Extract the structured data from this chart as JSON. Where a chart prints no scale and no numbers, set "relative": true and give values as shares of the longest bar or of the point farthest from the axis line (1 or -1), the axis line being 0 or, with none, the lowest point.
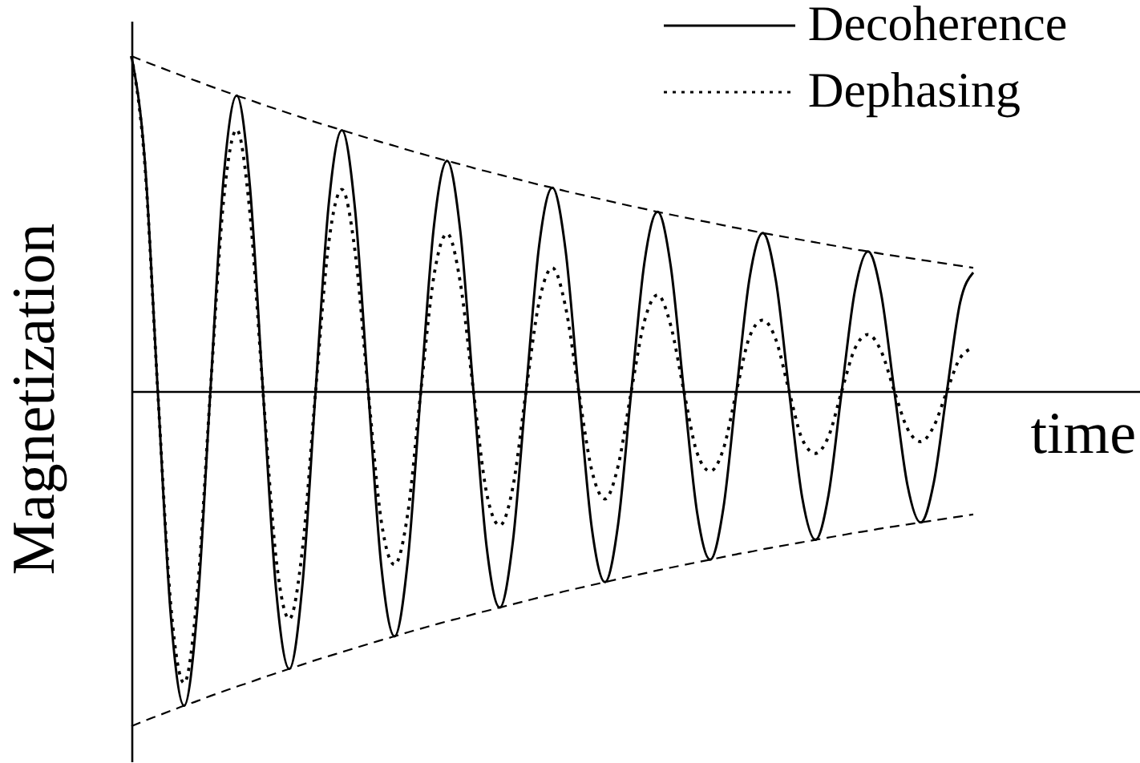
{
  "chart_data": {
    "type": "line",
    "xlabel": "time",
    "ylabel": "Magnetization",
    "relative": true,
    "legend": "top right",
    "categories": [
      null,
      null,
      null,
      null,
      null,
      null,
      null,
      null,
      null,
      null,
      null,
      null,
      null,
      null,
      null,
      null,
      null,
      null,
      null,
      null,
      null,
      null,
      null,
      null,
      null,
      null,
      null,
      null,
      null,
      null,
      null,
      null,
      null,
      null,
      null,
      null,
      null,
      null,
      null,
      null,
      null,
      null,
      null,
      null,
      null,
      null,
      null,
      null,
      null,
      null,
      null,
      null,
      null,
      null,
      null,
      null,
      null,
      null,
      null,
      null,
      null,
      null,
      null,
      null,
      null
    ],
    "series": [
      {
        "name": "Decoherence",
        "color": "#000000",
        "line_style": "solid",
        "values": [
          1,
          0.696,
          0,
          -0.675,
          -0.939,
          -0.654,
          0,
          0.634,
          0.882,
          0.614,
          0,
          -0.595,
          -0.829,
          -0.577,
          0,
          0.559,
          0.779,
          0.542,
          0,
          -0.525,
          -0.732,
          -0.509,
          0,
          0.494,
          0.687,
          0.478,
          0,
          -0.464,
          -0.646,
          -0.449,
          0,
          0.436,
          0.607,
          0.422,
          0,
          -0.409,
          -0.57,
          -0.397,
          0,
          0.384,
          0.535,
          0.373,
          0,
          -0.361,
          -0.503,
          -0.35,
          0,
          0.339,
          0.472,
          0.329,
          0,
          -0.319,
          -0.444,
          -0.309,
          0,
          0.299,
          0.417,
          0.29,
          0,
          -0.281,
          -0.392,
          -0.273,
          0,
          0.264,
          0.354
        ]
      },
      {
        "name": "Dephasing",
        "color": "#000000",
        "line_style": "dotted",
        "values": [
          1,
          0.685,
          0,
          -0.644,
          -0.871,
          -0.605,
          0,
          0.568,
          0.78,
          0.534,
          0,
          -0.501,
          -0.68,
          -0.471,
          0,
          0.443,
          0.602,
          0.416,
          0,
          -0.39,
          -0.518,
          -0.367,
          0,
          0.345,
          0.47,
          0.324,
          0,
          -0.304,
          -0.401,
          -0.286,
          0,
          0.268,
          0.368,
          0.252,
          0,
          -0.237,
          -0.322,
          -0.223,
          0,
          0.209,
          0.287,
          0.196,
          0,
          -0.184,
          -0.239,
          -0.173,
          0,
          0.163,
          0.212,
          0.153,
          0,
          -0.144,
          -0.186,
          -0.135,
          0,
          0.127,
          0.169,
          0.119,
          0,
          -0.112,
          -0.151,
          -0.105,
          0,
          0.099,
          0.129
        ]
      },
      {
        "color": "#000000",
        "line_style": "dashed",
        "values": [
          1,
          0.984,
          0.969,
          0.954,
          0.939,
          0.925,
          0.91,
          0.896,
          0.882,
          0.869,
          0.855,
          0.842,
          0.829,
          0.816,
          0.803,
          0.791,
          0.779,
          0.767,
          0.755,
          0.743,
          0.732,
          0.72,
          0.709,
          0.698,
          0.687,
          0.677,
          0.666,
          0.656,
          0.646,
          0.636,
          0.626,
          0.616,
          0.607,
          0.597,
          0.588,
          0.579,
          0.57,
          0.561,
          0.552,
          0.544,
          0.535,
          0.527,
          0.519,
          0.511,
          0.503,
          0.495,
          0.487,
          0.48,
          0.472,
          0.465,
          0.458,
          0.451,
          0.444,
          0.437,
          0.43,
          0.423,
          0.417,
          0.41,
          0.404,
          0.398,
          0.392,
          0.386,
          0.38,
          0.374,
          0.368
        ]
      },
      {
        "color": "#000000",
        "line_style": "dashed",
        "values": [
          -1,
          -0.984,
          -0.969,
          -0.954,
          -0.939,
          -0.925,
          -0.91,
          -0.896,
          -0.882,
          -0.869,
          -0.855,
          -0.842,
          -0.829,
          -0.816,
          -0.803,
          -0.791,
          -0.779,
          -0.767,
          -0.755,
          -0.743,
          -0.732,
          -0.72,
          -0.709,
          -0.698,
          -0.687,
          -0.677,
          -0.666,
          -0.656,
          -0.646,
          -0.636,
          -0.626,
          -0.616,
          -0.607,
          -0.597,
          -0.588,
          -0.579,
          -0.57,
          -0.561,
          -0.552,
          -0.544,
          -0.535,
          -0.527,
          -0.519,
          -0.511,
          -0.503,
          -0.495,
          -0.487,
          -0.48,
          -0.472,
          -0.465,
          -0.458,
          -0.451,
          -0.444,
          -0.437,
          -0.43,
          -0.423,
          -0.417,
          -0.41,
          -0.404,
          -0.398,
          -0.392,
          -0.386,
          -0.38,
          -0.374,
          -0.368
        ]
      }
    ]
  }
}
